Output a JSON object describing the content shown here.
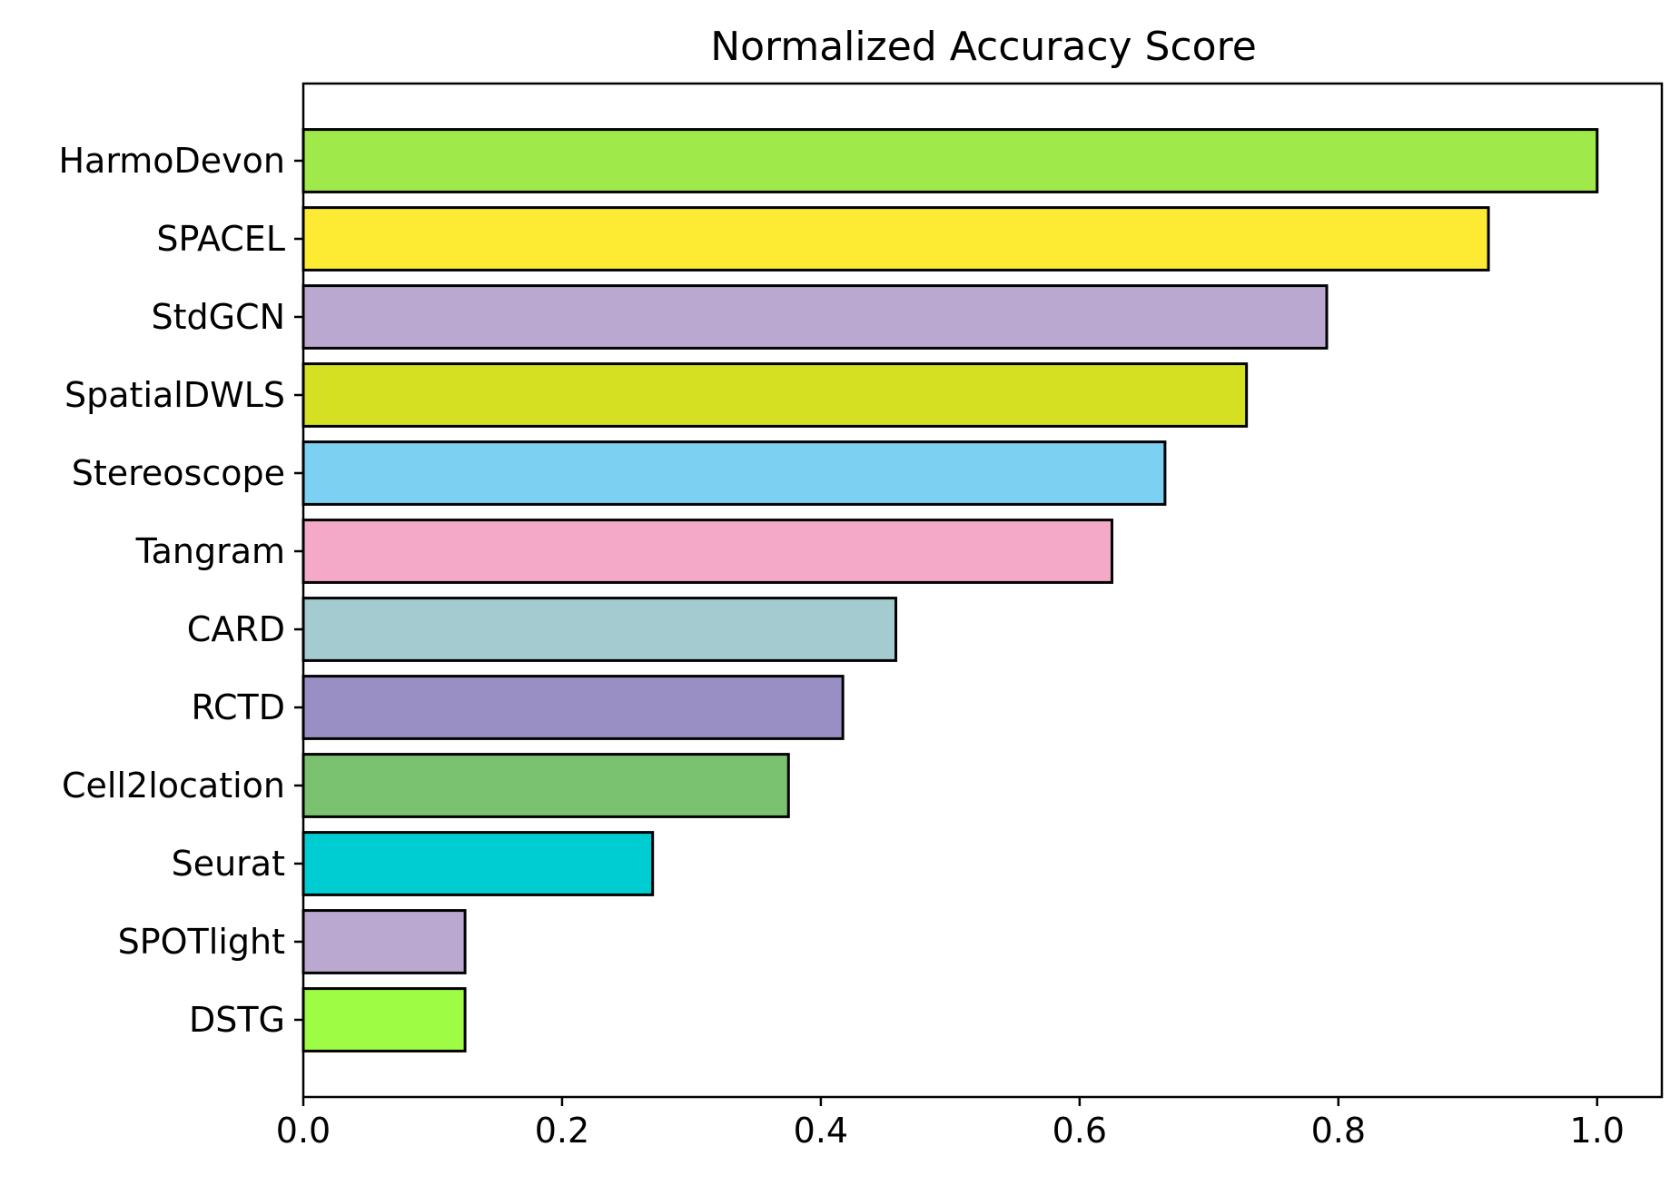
{
  "chart_data": {
    "type": "bar",
    "orientation": "horizontal",
    "title": "Normalized Accuracy Score",
    "xlabel": "",
    "ylabel": "",
    "xlim": [
      0,
      1.05
    ],
    "x_ticks": [
      "0.0",
      "0.2",
      "0.4",
      "0.6",
      "0.8",
      "1.0"
    ],
    "grid": false,
    "legend": "none",
    "categories": [
      "HarmoDevon",
      "SPACEL",
      "StdGCN",
      "SpatialDWLS",
      "Stereoscope",
      "Tangram",
      "CARD",
      "RCTD",
      "Cell2location",
      "Seurat",
      "SPOTlight",
      "DSTG"
    ],
    "values": [
      1.0,
      0.916,
      0.791,
      0.729,
      0.666,
      0.625,
      0.458,
      0.417,
      0.375,
      0.27,
      0.125,
      0.125
    ],
    "colors": [
      "#9fe94a",
      "#fcea33",
      "#bba8d1",
      "#d6e022",
      "#7cd0f2",
      "#f4a9c8",
      "#a3cbd0",
      "#998fc4",
      "#7ac26f",
      "#00cdd1",
      "#baa8d1",
      "#9ffc45"
    ],
    "edge_color": "#000000"
  }
}
